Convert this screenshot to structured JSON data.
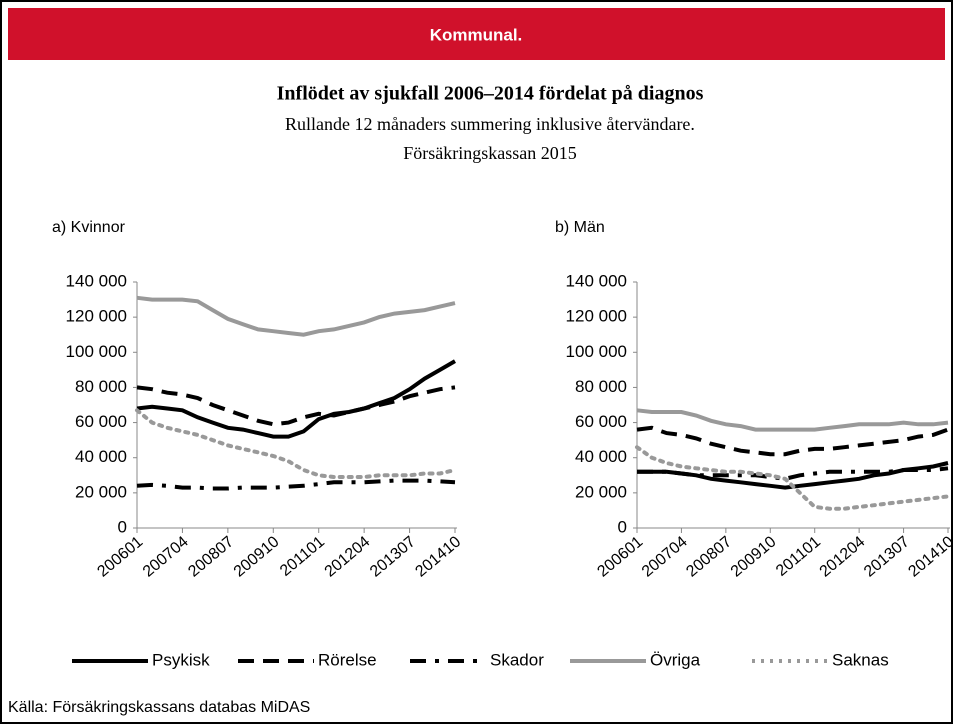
{
  "header": "Kommunal.",
  "title": "Inflödet av sjukfall 2006–2014 fördelat på diagnos",
  "subtitle": [
    "Rullande 12 månaders summering inklusive återvändare.",
    "Försäkringskassan 2015"
  ],
  "source": "Källa: Försäkringskassans databas MiDAS",
  "chart_data": [
    {
      "type": "line",
      "title": "a) Kvinnor",
      "categories": [
        "200601",
        null,
        null,
        "200704",
        null,
        null,
        "200807",
        null,
        null,
        "200910",
        null,
        null,
        "201101",
        null,
        null,
        "201204",
        null,
        null,
        "201307",
        null,
        null,
        "201410"
      ],
      "ylim": [
        0,
        140000
      ],
      "yticks": [
        0,
        {
          "value": 20000,
          "label": "20 000"
        },
        {
          "value": 40000,
          "label": "40 000"
        },
        {
          "value": 60000,
          "label": "60 000"
        },
        {
          "value": 80000,
          "label": "80 000"
        },
        {
          "value": 100000,
          "label": "100 000"
        },
        {
          "value": 120000,
          "label": "120 000"
        },
        {
          "value": 140000,
          "label": "140 000"
        }
      ],
      "series": [
        {
          "name": "Psykisk",
          "color": "#000000",
          "dash": "solid",
          "values": [
            68000,
            69000,
            68000,
            67000,
            63000,
            60000,
            57000,
            56000,
            54000,
            52000,
            52000,
            55000,
            62000,
            65000,
            66000,
            68000,
            71000,
            74000,
            79000,
            85000,
            90000,
            95000
          ]
        },
        {
          "name": "Rörelse",
          "color": "#000000",
          "dash": "dashed",
          "values": [
            80000,
            79000,
            77000,
            76000,
            74000,
            70000,
            67000,
            64000,
            61000,
            59000,
            60000,
            63000,
            65000,
            64000,
            66000,
            68000,
            70000,
            72000,
            75000,
            77000,
            79000,
            80000
          ]
        },
        {
          "name": "Skador",
          "color": "#000000",
          "dash": "dashdot",
          "values": [
            24000,
            24500,
            24000,
            23000,
            23000,
            22500,
            22500,
            23000,
            23000,
            23000,
            23500,
            24000,
            25000,
            26000,
            26000,
            26000,
            26500,
            27000,
            27000,
            27000,
            26500,
            26000
          ]
        },
        {
          "name": "Övriga",
          "color": "#999999",
          "dash": "solid",
          "values": [
            131000,
            130000,
            130000,
            130000,
            129000,
            124000,
            119000,
            116000,
            113000,
            112000,
            111000,
            110000,
            112000,
            113000,
            115000,
            117000,
            120000,
            122000,
            123000,
            124000,
            126000,
            128000
          ]
        },
        {
          "name": "Saknas",
          "color": "#999999",
          "dash": "dotted",
          "values": [
            67000,
            60000,
            57000,
            55000,
            53000,
            50000,
            47000,
            45000,
            43000,
            41000,
            38000,
            33000,
            30000,
            29000,
            29000,
            29000,
            30000,
            30000,
            30000,
            31000,
            31000,
            33000
          ]
        }
      ]
    },
    {
      "type": "line",
      "title": "b) Män",
      "categories": [
        "200601",
        null,
        null,
        "200704",
        null,
        null,
        "200807",
        null,
        null,
        "200910",
        null,
        null,
        "201101",
        null,
        null,
        "201204",
        null,
        null,
        "201307",
        null,
        null,
        "201410"
      ],
      "ylim": [
        0,
        140000
      ],
      "yticks": [
        0,
        {
          "value": 20000,
          "label": "20 000"
        },
        {
          "value": 40000,
          "label": "40 000"
        },
        {
          "value": 60000,
          "label": "60 000"
        },
        {
          "value": 80000,
          "label": "80 000"
        },
        {
          "value": 100000,
          "label": "100 000"
        },
        {
          "value": 120000,
          "label": "120 000"
        },
        {
          "value": 140000,
          "label": "140 000"
        }
      ],
      "series": [
        {
          "color": "#000000",
          "dash": "solid",
          "values": [
            32000,
            32000,
            32000,
            31000,
            30000,
            28000,
            27000,
            26000,
            25000,
            24000,
            23000,
            24000,
            25000,
            26000,
            27000,
            28000,
            30000,
            31000,
            33000,
            34000,
            35000,
            37000
          ]
        },
        {
          "color": "#000000",
          "dash": "dashed",
          "values": [
            56000,
            57000,
            54000,
            53000,
            51000,
            48000,
            46000,
            44000,
            43000,
            42000,
            42000,
            44000,
            45000,
            45000,
            46000,
            47000,
            48000,
            49000,
            50000,
            52000,
            53000,
            56000
          ]
        },
        {
          "color": "#000000",
          "dash": "dashdot",
          "values": [
            32000,
            32000,
            32000,
            31000,
            30000,
            30000,
            30000,
            30000,
            30000,
            29000,
            28000,
            30000,
            31000,
            32000,
            32000,
            32000,
            32000,
            32000,
            33000,
            33000,
            33000,
            34000
          ]
        },
        {
          "color": "#999999",
          "dash": "solid",
          "values": [
            67000,
            66000,
            66000,
            66000,
            64000,
            61000,
            59000,
            58000,
            56000,
            56000,
            56000,
            56000,
            56000,
            57000,
            58000,
            59000,
            59000,
            59000,
            60000,
            59000,
            59000,
            60000
          ]
        },
        {
          "color": "#999999",
          "dash": "dotted",
          "values": [
            46000,
            40000,
            37000,
            35000,
            34000,
            33000,
            32000,
            32000,
            31000,
            30000,
            28000,
            20000,
            12000,
            11000,
            11000,
            12000,
            13000,
            14000,
            15000,
            16000,
            17000,
            18000
          ]
        }
      ]
    }
  ]
}
